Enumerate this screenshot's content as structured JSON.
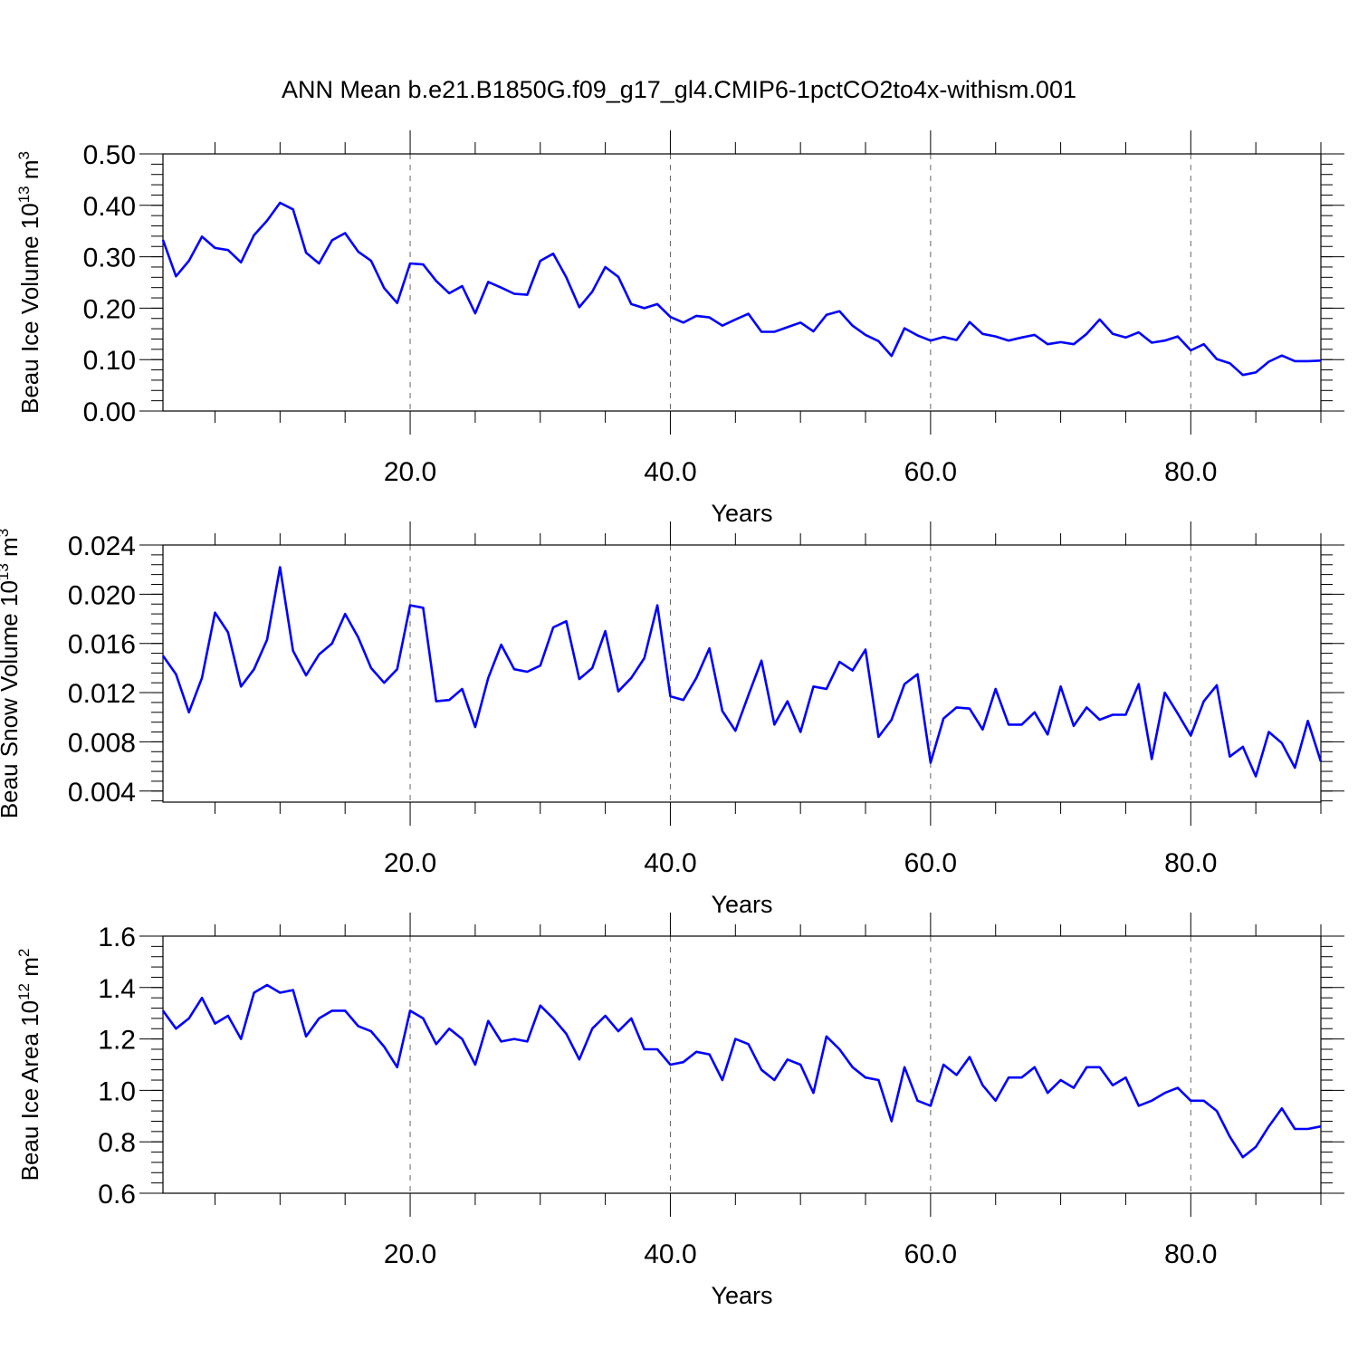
{
  "figure_title": "ANN Mean b.e21.B1850G.f09_g17_gl4.CMIP6-1pctCO2to4x-withism.001",
  "line_color": "#0000ff",
  "chart_data": [
    {
      "type": "line",
      "ylabel_main": "Beau Ice Volume 10",
      "ylabel_sup1": "13",
      "ylabel_unit": " m",
      "ylabel_sup2": "3",
      "xlabel": "Years",
      "xlim": [
        1,
        90
      ],
      "ylim": [
        0.0,
        0.5
      ],
      "y_ticks": [
        0.0,
        0.1,
        0.2,
        0.3,
        0.4,
        0.5
      ],
      "y_tick_labels": [
        "0.00",
        "0.10",
        "0.20",
        "0.30",
        "0.40",
        "0.50"
      ],
      "x_ticks": [
        20,
        40,
        60,
        80
      ],
      "x_tick_labels": [
        "20.0",
        "40.0",
        "60.0",
        "80.0"
      ],
      "grid": "vertical dashed at major x ticks",
      "series": [
        {
          "x": [
            1,
            2,
            3,
            4,
            5,
            6,
            7,
            8,
            9,
            10,
            11,
            12,
            13,
            14,
            15,
            16,
            17,
            18,
            19,
            20,
            21,
            22,
            23,
            24,
            25,
            26,
            27,
            28,
            29,
            30,
            31,
            32,
            33,
            34,
            35,
            36,
            37,
            38,
            39,
            40,
            41,
            42,
            43,
            44,
            45,
            46,
            47,
            48,
            49,
            50,
            51,
            52,
            53,
            54,
            55,
            56,
            57,
            58,
            59,
            60,
            61,
            62,
            63,
            64,
            65,
            66,
            67,
            68,
            69,
            70,
            71,
            72,
            73,
            74,
            75,
            76,
            77,
            78,
            79,
            80,
            81,
            82,
            83,
            84,
            85,
            86,
            87,
            88,
            89,
            90
          ],
          "y": [
            0.333,
            0.262,
            0.292,
            0.339,
            0.317,
            0.313,
            0.289,
            0.342,
            0.37,
            0.405,
            0.392,
            0.308,
            0.287,
            0.332,
            0.346,
            0.31,
            0.292,
            0.239,
            0.21,
            0.287,
            0.285,
            0.253,
            0.229,
            0.243,
            0.19,
            0.251,
            0.24,
            0.228,
            0.226,
            0.292,
            0.306,
            0.26,
            0.202,
            0.232,
            0.28,
            0.261,
            0.208,
            0.2,
            0.208,
            0.183,
            0.172,
            0.185,
            0.182,
            0.166,
            0.178,
            0.189,
            0.154,
            0.154,
            0.163,
            0.172,
            0.155,
            0.187,
            0.194,
            0.166,
            0.148,
            0.136,
            0.107,
            0.161,
            0.147,
            0.137,
            0.144,
            0.138,
            0.173,
            0.15,
            0.145,
            0.137,
            0.143,
            0.148,
            0.13,
            0.134,
            0.13,
            0.15,
            0.178,
            0.15,
            0.143,
            0.153,
            0.133,
            0.137,
            0.145,
            0.118,
            0.13,
            0.101,
            0.093,
            0.07,
            0.075,
            0.096,
            0.108,
            0.097,
            0.097,
            0.098
          ]
        }
      ]
    },
    {
      "type": "line",
      "ylabel_main": "Beau Snow Volume 10",
      "ylabel_sup1": "13",
      "ylabel_unit": " m",
      "ylabel_sup2": "3",
      "xlabel": "Years",
      "xlim": [
        1,
        90
      ],
      "ylim": [
        0.0031,
        0.024
      ],
      "y_ticks": [
        0.004,
        0.008,
        0.012,
        0.016,
        0.02,
        0.024
      ],
      "y_tick_labels": [
        "0.004",
        "0.008",
        "0.012",
        "0.016",
        "0.020",
        "0.024"
      ],
      "x_ticks": [
        20,
        40,
        60,
        80
      ],
      "x_tick_labels": [
        "20.0",
        "40.0",
        "60.0",
        "80.0"
      ],
      "grid": "vertical dashed at major x ticks",
      "series": [
        {
          "x": [
            1,
            2,
            3,
            4,
            5,
            6,
            7,
            8,
            9,
            10,
            11,
            12,
            13,
            14,
            15,
            16,
            17,
            18,
            19,
            20,
            21,
            22,
            23,
            24,
            25,
            26,
            27,
            28,
            29,
            30,
            31,
            32,
            33,
            34,
            35,
            36,
            37,
            38,
            39,
            40,
            41,
            42,
            43,
            44,
            45,
            46,
            47,
            48,
            49,
            50,
            51,
            52,
            53,
            54,
            55,
            56,
            57,
            58,
            59,
            60,
            61,
            62,
            63,
            64,
            65,
            66,
            67,
            68,
            69,
            70,
            71,
            72,
            73,
            74,
            75,
            76,
            77,
            78,
            79,
            80,
            81,
            82,
            83,
            84,
            85,
            86,
            87,
            88,
            89,
            90
          ],
          "y": [
            0.015,
            0.0135,
            0.0104,
            0.0132,
            0.0185,
            0.0169,
            0.0125,
            0.0139,
            0.0163,
            0.0222,
            0.0154,
            0.0134,
            0.0151,
            0.016,
            0.0184,
            0.0165,
            0.014,
            0.0128,
            0.0139,
            0.0191,
            0.0189,
            0.0113,
            0.0114,
            0.0123,
            0.0092,
            0.0132,
            0.0159,
            0.0139,
            0.0137,
            0.0142,
            0.0173,
            0.0178,
            0.0131,
            0.014,
            0.017,
            0.0121,
            0.0132,
            0.0148,
            0.0191,
            0.0117,
            0.0114,
            0.0132,
            0.0156,
            0.0105,
            0.0089,
            0.0118,
            0.0146,
            0.0094,
            0.0113,
            0.0088,
            0.0125,
            0.0123,
            0.0145,
            0.0138,
            0.0155,
            0.0084,
            0.0098,
            0.0127,
            0.0135,
            0.0063,
            0.0099,
            0.0108,
            0.0107,
            0.009,
            0.0123,
            0.0094,
            0.0094,
            0.0104,
            0.0086,
            0.0125,
            0.0093,
            0.0108,
            0.0098,
            0.0102,
            0.0102,
            0.0127,
            0.0066,
            0.012,
            0.0103,
            0.0085,
            0.0113,
            0.0126,
            0.0068,
            0.0076,
            0.0052,
            0.0088,
            0.0079,
            0.0059,
            0.0097,
            0.0064
          ]
        }
      ]
    },
    {
      "type": "line",
      "ylabel_main": "Beau Ice Area 10",
      "ylabel_sup1": "12",
      "ylabel_unit": " m",
      "ylabel_sup2": "2",
      "xlabel": "Years",
      "xlim": [
        1,
        90
      ],
      "ylim": [
        0.6,
        1.6
      ],
      "y_ticks": [
        0.6,
        0.8,
        1.0,
        1.2,
        1.4,
        1.6
      ],
      "y_tick_labels": [
        "0.6",
        "0.8",
        "1.0",
        "1.2",
        "1.4",
        "1.6"
      ],
      "x_ticks": [
        20,
        40,
        60,
        80
      ],
      "x_tick_labels": [
        "20.0",
        "40.0",
        "60.0",
        "80.0"
      ],
      "grid": "vertical dashed at major x ticks",
      "series": [
        {
          "x": [
            1,
            2,
            3,
            4,
            5,
            6,
            7,
            8,
            9,
            10,
            11,
            12,
            13,
            14,
            15,
            16,
            17,
            18,
            19,
            20,
            21,
            22,
            23,
            24,
            25,
            26,
            27,
            28,
            29,
            30,
            31,
            32,
            33,
            34,
            35,
            36,
            37,
            38,
            39,
            40,
            41,
            42,
            43,
            44,
            45,
            46,
            47,
            48,
            49,
            50,
            51,
            52,
            53,
            54,
            55,
            56,
            57,
            58,
            59,
            60,
            61,
            62,
            63,
            64,
            65,
            66,
            67,
            68,
            69,
            70,
            71,
            72,
            73,
            74,
            75,
            76,
            77,
            78,
            79,
            80,
            81,
            82,
            83,
            84,
            85,
            86,
            87,
            88,
            89,
            90
          ],
          "y": [
            1.31,
            1.24,
            1.28,
            1.36,
            1.26,
            1.29,
            1.2,
            1.38,
            1.41,
            1.38,
            1.39,
            1.21,
            1.28,
            1.31,
            1.31,
            1.25,
            1.23,
            1.17,
            1.09,
            1.31,
            1.28,
            1.18,
            1.24,
            1.2,
            1.1,
            1.27,
            1.19,
            1.2,
            1.19,
            1.33,
            1.28,
            1.22,
            1.12,
            1.24,
            1.29,
            1.23,
            1.28,
            1.16,
            1.16,
            1.1,
            1.11,
            1.15,
            1.14,
            1.04,
            1.2,
            1.18,
            1.08,
            1.04,
            1.12,
            1.1,
            0.99,
            1.21,
            1.16,
            1.09,
            1.05,
            1.04,
            0.88,
            1.09,
            0.96,
            0.94,
            1.1,
            1.06,
            1.13,
            1.02,
            0.96,
            1.05,
            1.05,
            1.09,
            0.99,
            1.04,
            1.01,
            1.09,
            1.09,
            1.02,
            1.05,
            0.94,
            0.96,
            0.99,
            1.01,
            0.96,
            0.96,
            0.92,
            0.82,
            0.74,
            0.78,
            0.86,
            0.93,
            0.85,
            0.85,
            0.86
          ]
        }
      ]
    }
  ]
}
